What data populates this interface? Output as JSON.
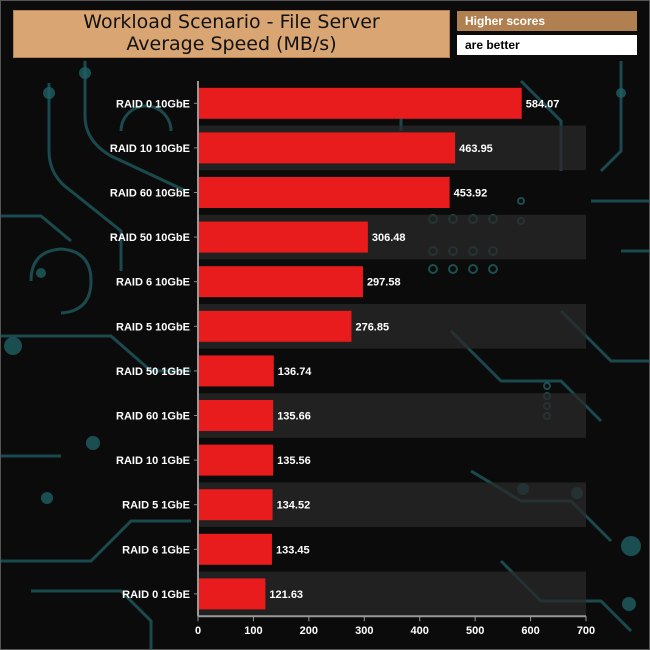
{
  "header": {
    "title_line1": "Workload Scenario - File Server",
    "title_line2": "Average Speed (MB/s)",
    "badge_top": "Higher scores",
    "badge_bottom": "are better"
  },
  "colors": {
    "bar": "#e81c1c",
    "title_bg": "#d9a673",
    "badge_bg": "#b08050",
    "band": "#2a2a2a",
    "circuit": "#1f5f63"
  },
  "chart_data": {
    "type": "bar",
    "orientation": "horizontal",
    "title": "Workload Scenario - File Server Average Speed (MB/s)",
    "categories": [
      "RAID 0 10GbE",
      "RAID 10 10GbE",
      "RAID 60 10GbE",
      "RAID 50 10GbE",
      "RAID 6 10GbE",
      "RAID 5 10GbE",
      "RAID 50 1GbE",
      "RAID 60 1GbE",
      "RAID 10 1GbE",
      "RAID 5 1GbE",
      "RAID 6 1GbE",
      "RAID 0 1GbE"
    ],
    "values": [
      584.07,
      463.95,
      453.92,
      306.48,
      297.58,
      276.85,
      136.74,
      135.66,
      135.56,
      134.52,
      133.45,
      121.63
    ],
    "value_labels": [
      "584.07",
      "463.95",
      "453.92",
      "306.48",
      "297.58",
      "276.85",
      "136.74",
      "135.66",
      "135.56",
      "134.52",
      "133.45",
      "121.63"
    ],
    "xlim": [
      0,
      700
    ],
    "xticks": [
      "0",
      "100",
      "200",
      "300",
      "400",
      "500",
      "600",
      "700"
    ],
    "xtick_values": [
      0,
      100,
      200,
      300,
      400,
      500,
      600,
      700
    ],
    "grid": false,
    "legend": "none"
  }
}
